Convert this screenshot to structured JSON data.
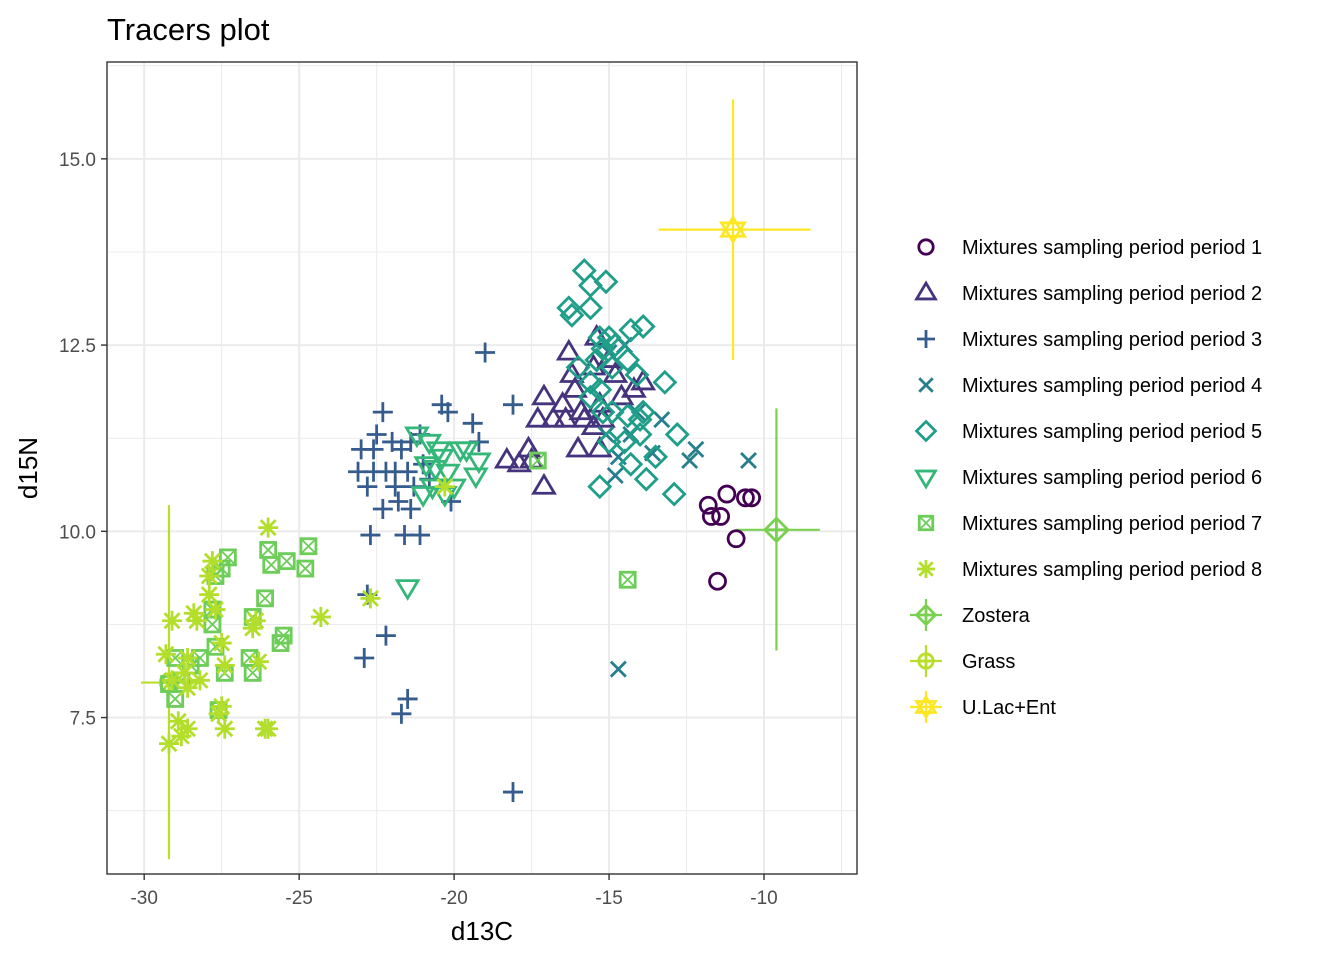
{
  "chart_data": {
    "type": "scatter",
    "title": "Tracers plot",
    "xlabel": "d13C",
    "ylabel": "d15N",
    "xlim": [
      -31.2,
      -7.0
    ],
    "ylim": [
      5.4,
      16.3
    ],
    "x_ticks": [
      -30,
      -25,
      -20,
      -15,
      -10
    ],
    "y_ticks": [
      7.5,
      10.0,
      12.5,
      15.0
    ],
    "x_tick_labels": [
      "-30",
      "-25",
      "-20",
      "-15",
      "-10"
    ],
    "y_tick_labels": [
      "7.5",
      "10.0",
      "12.5",
      "15.0"
    ],
    "grid": true,
    "legend_position": "right",
    "series": [
      {
        "name": "Mixtures sampling period period 1",
        "color": "#440154",
        "shape": "circle",
        "points": [
          [
            -11.8,
            10.35
          ],
          [
            -11.7,
            10.2
          ],
          [
            -11.4,
            10.2
          ],
          [
            -11.2,
            10.5
          ],
          [
            -10.9,
            9.9
          ],
          [
            -10.6,
            10.45
          ],
          [
            -10.4,
            10.45
          ],
          [
            -11.5,
            9.33
          ]
        ]
      },
      {
        "name": "Mixtures sampling period period 2",
        "color": "#46337E",
        "shape": "triangle",
        "points": [
          [
            -16.3,
            12.4
          ],
          [
            -16.2,
            12.1
          ],
          [
            -16.1,
            11.9
          ],
          [
            -15.5,
            12.2
          ],
          [
            -15.4,
            12.6
          ],
          [
            -15.0,
            12.3
          ],
          [
            -14.8,
            12.1
          ],
          [
            -16.5,
            11.7
          ],
          [
            -15.9,
            11.6
          ],
          [
            -15.3,
            11.7
          ],
          [
            -17.1,
            11.8
          ],
          [
            -17.3,
            11.5
          ],
          [
            -16.8,
            11.5
          ],
          [
            -16.4,
            11.5
          ],
          [
            -15.8,
            11.5
          ],
          [
            -15.5,
            11.4
          ],
          [
            -15.2,
            11.5
          ],
          [
            -14.6,
            11.8
          ],
          [
            -14.2,
            11.9
          ],
          [
            -16.0,
            11.1
          ],
          [
            -15.3,
            11.1
          ],
          [
            -17.6,
            11.1
          ],
          [
            -18.3,
            10.95
          ],
          [
            -17.9,
            10.9
          ],
          [
            -17.5,
            10.95
          ],
          [
            -17.1,
            10.6
          ],
          [
            -13.9,
            12.0
          ]
        ]
      },
      {
        "name": "Mixtures sampling period period 3",
        "color": "#365C8D",
        "shape": "plus",
        "points": [
          [
            -19.0,
            12.4
          ],
          [
            -22.3,
            11.6
          ],
          [
            -20.4,
            11.7
          ],
          [
            -20.2,
            11.6
          ],
          [
            -21.1,
            11.3
          ],
          [
            -22.5,
            11.3
          ],
          [
            -23.0,
            11.1
          ],
          [
            -22.6,
            11.1
          ],
          [
            -22.0,
            11.2
          ],
          [
            -21.7,
            11.1
          ],
          [
            -21.4,
            11.2
          ],
          [
            -19.2,
            11.2
          ],
          [
            -18.1,
            11.7
          ],
          [
            -19.4,
            11.45
          ],
          [
            -23.1,
            10.8
          ],
          [
            -22.6,
            10.8
          ],
          [
            -22.2,
            10.8
          ],
          [
            -21.9,
            10.8
          ],
          [
            -21.5,
            10.8
          ],
          [
            -21.9,
            10.6
          ],
          [
            -21.3,
            10.6
          ],
          [
            -22.8,
            10.6
          ],
          [
            -21.8,
            10.4
          ],
          [
            -22.3,
            10.3
          ],
          [
            -21.4,
            10.3
          ],
          [
            -20.1,
            10.4
          ],
          [
            -22.7,
            9.95
          ],
          [
            -21.6,
            9.95
          ],
          [
            -21.1,
            9.95
          ],
          [
            -22.8,
            9.15
          ],
          [
            -22.2,
            8.6
          ],
          [
            -22.9,
            8.3
          ],
          [
            -21.5,
            7.75
          ],
          [
            -21.7,
            7.55
          ],
          [
            -18.1,
            6.5
          ],
          [
            -21.0,
            10.9
          ],
          [
            -20.8,
            10.7
          ]
        ]
      },
      {
        "name": "Mixtures sampling period period 4",
        "color": "#277F8E",
        "shape": "x",
        "points": [
          [
            -14.7,
            8.15
          ],
          [
            -10.5,
            10.95
          ],
          [
            -12.2,
            11.1
          ],
          [
            -12.4,
            10.95
          ],
          [
            -13.6,
            11.05
          ],
          [
            -14.3,
            11.3
          ],
          [
            -14.7,
            11.0
          ],
          [
            -14.8,
            10.75
          ],
          [
            -15.1,
            11.3
          ],
          [
            -13.3,
            11.5
          ],
          [
            -14.1,
            11.6
          ],
          [
            -15.0,
            12.4
          ],
          [
            -14.5,
            12.5
          ]
        ]
      },
      {
        "name": "Mixtures sampling period period 5",
        "color": "#1F9E89",
        "shape": "diamond",
        "points": [
          [
            -15.8,
            13.5
          ],
          [
            -15.6,
            13.3
          ],
          [
            -15.1,
            13.35
          ],
          [
            -16.3,
            13.0
          ],
          [
            -15.6,
            13.0
          ],
          [
            -16.2,
            12.9
          ],
          [
            -14.3,
            12.7
          ],
          [
            -13.9,
            12.75
          ],
          [
            -15.3,
            12.6
          ],
          [
            -15.2,
            12.45
          ],
          [
            -15.0,
            12.6
          ],
          [
            -14.8,
            12.5
          ],
          [
            -15.4,
            12.3
          ],
          [
            -14.9,
            12.2
          ],
          [
            -14.4,
            12.3
          ],
          [
            -16.0,
            12.2
          ],
          [
            -15.6,
            12.0
          ],
          [
            -15.3,
            11.9
          ],
          [
            -14.1,
            12.1
          ],
          [
            -13.2,
            12.0
          ],
          [
            -15.2,
            11.6
          ],
          [
            -14.9,
            11.6
          ],
          [
            -14.4,
            11.55
          ],
          [
            -13.9,
            11.6
          ],
          [
            -14.5,
            11.2
          ],
          [
            -15.0,
            11.2
          ],
          [
            -12.8,
            11.3
          ],
          [
            -14.0,
            11.3
          ],
          [
            -13.5,
            11.0
          ],
          [
            -14.3,
            10.9
          ],
          [
            -13.8,
            10.7
          ],
          [
            -15.3,
            10.6
          ],
          [
            -12.9,
            10.5
          ],
          [
            -14.0,
            11.5
          ],
          [
            -15.6,
            11.8
          ]
        ]
      },
      {
        "name": "Mixtures sampling period period 6",
        "color": "#35B779",
        "shape": "triangle-down",
        "points": [
          [
            -21.2,
            11.3
          ],
          [
            -20.8,
            11.2
          ],
          [
            -20.5,
            11.1
          ],
          [
            -19.8,
            11.1
          ],
          [
            -19.6,
            11.1
          ],
          [
            -20.9,
            10.9
          ],
          [
            -20.6,
            10.85
          ],
          [
            -20.2,
            10.8
          ],
          [
            -19.2,
            10.95
          ],
          [
            -20.7,
            10.6
          ],
          [
            -20.3,
            10.5
          ],
          [
            -20.0,
            10.6
          ],
          [
            -21.0,
            10.5
          ],
          [
            -21.5,
            9.25
          ],
          [
            -20.4,
            11.0
          ],
          [
            -19.3,
            10.75
          ]
        ]
      },
      {
        "name": "Mixtures sampling period period 7",
        "color": "#6DCD59",
        "shape": "square-x",
        "points": [
          [
            -27.3,
            9.65
          ],
          [
            -27.5,
            9.5
          ],
          [
            -27.7,
            9.4
          ],
          [
            -26.0,
            9.75
          ],
          [
            -25.9,
            9.55
          ],
          [
            -25.4,
            9.6
          ],
          [
            -24.7,
            9.8
          ],
          [
            -24.8,
            9.5
          ],
          [
            -26.1,
            9.1
          ],
          [
            -27.8,
            8.95
          ],
          [
            -27.8,
            8.75
          ],
          [
            -26.5,
            8.85
          ],
          [
            -25.5,
            8.6
          ],
          [
            -25.6,
            8.5
          ],
          [
            -27.7,
            8.45
          ],
          [
            -28.2,
            8.3
          ],
          [
            -28.5,
            8.2
          ],
          [
            -29.0,
            8.3
          ],
          [
            -26.6,
            8.3
          ],
          [
            -26.5,
            8.1
          ],
          [
            -27.4,
            8.1
          ],
          [
            -28.8,
            8.0
          ],
          [
            -29.2,
            7.95
          ],
          [
            -29.0,
            7.75
          ],
          [
            -27.6,
            7.6
          ],
          [
            -17.3,
            10.95
          ],
          [
            -14.4,
            9.35
          ]
        ]
      },
      {
        "name": "Mixtures sampling period period 8",
        "color": "#B4DE2C",
        "shape": "asterisk",
        "points": [
          [
            -26.0,
            10.05
          ],
          [
            -27.8,
            9.6
          ],
          [
            -27.9,
            9.4
          ],
          [
            -27.9,
            9.15
          ],
          [
            -22.7,
            9.1
          ],
          [
            -27.7,
            8.95
          ],
          [
            -28.4,
            8.9
          ],
          [
            -28.3,
            8.8
          ],
          [
            -26.4,
            8.8
          ],
          [
            -26.5,
            8.7
          ],
          [
            -24.3,
            8.85
          ],
          [
            -29.1,
            8.8
          ],
          [
            -27.5,
            8.5
          ],
          [
            -26.3,
            8.25
          ],
          [
            -29.3,
            8.35
          ],
          [
            -28.6,
            8.3
          ],
          [
            -27.4,
            8.2
          ],
          [
            -28.7,
            8.1
          ],
          [
            -28.2,
            8.0
          ],
          [
            -29.1,
            8.0
          ],
          [
            -28.6,
            7.9
          ],
          [
            -27.5,
            7.65
          ],
          [
            -27.6,
            7.55
          ],
          [
            -28.9,
            7.45
          ],
          [
            -28.6,
            7.35
          ],
          [
            -27.4,
            7.35
          ],
          [
            -26.1,
            7.35
          ],
          [
            -26.0,
            7.35
          ],
          [
            -29.2,
            7.15
          ],
          [
            -28.8,
            7.25
          ],
          [
            -20.3,
            10.6
          ]
        ]
      }
    ],
    "sources": [
      {
        "name": "Zostera",
        "color": "#7AD151",
        "shape": "diamond-plus",
        "x": -9.6,
        "y": 10.02,
        "x_range": [
          -10.9,
          -8.2
        ],
        "y_range": [
          8.4,
          11.65
        ]
      },
      {
        "name": "Grass",
        "color": "#B8DE29",
        "shape": "circle-plus",
        "x": -29.2,
        "y": 7.97,
        "x_range": [
          -30.1,
          -28.3
        ],
        "y_range": [
          5.6,
          10.35
        ]
      },
      {
        "name": "U.Lac+Ent",
        "color": "#FDE725",
        "shape": "star",
        "x": -11.0,
        "y": 14.05,
        "x_range": [
          -13.4,
          -8.5
        ],
        "y_range": [
          12.3,
          15.8
        ]
      }
    ]
  }
}
